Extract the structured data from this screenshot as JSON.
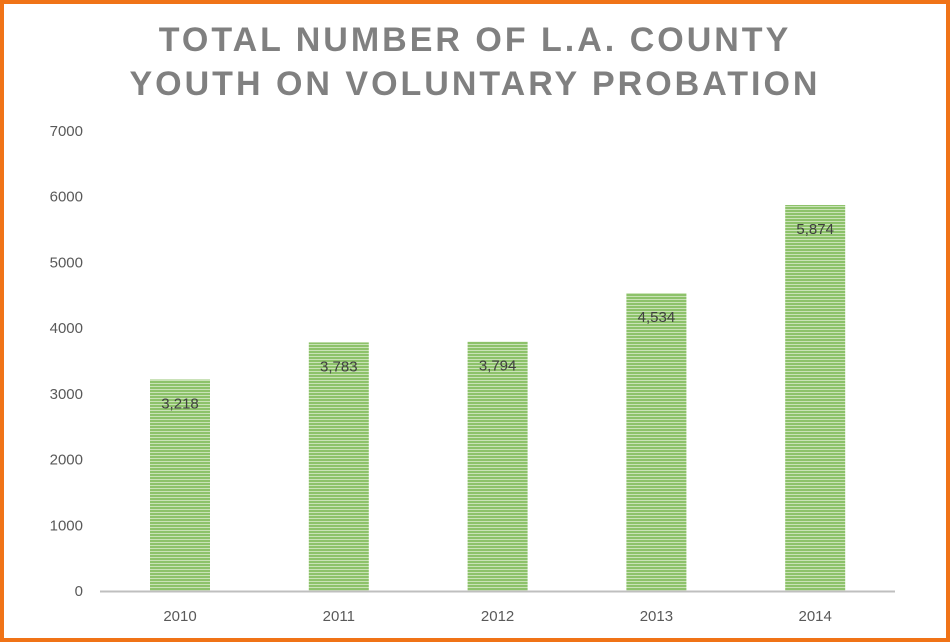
{
  "chart_data": {
    "type": "bar",
    "title_lines": [
      "TOTAL NUMBER OF L.A. COUNTY",
      "YOUTH ON VOLUNTARY PROBATION"
    ],
    "categories": [
      "2010",
      "2011",
      "2012",
      "2013",
      "2014"
    ],
    "values": [
      3218,
      3783,
      3794,
      4534,
      5874
    ],
    "data_labels": [
      "3,218",
      "3,783",
      "3,794",
      "4,534",
      "5,874"
    ],
    "xlabel": "",
    "ylabel": "",
    "ylim": [
      0,
      7000
    ],
    "yticks": [
      "0",
      "1000",
      "2000",
      "3000",
      "4000",
      "5000",
      "6000",
      "7000"
    ],
    "grid": false,
    "colors": {
      "bar": "#8dc26a",
      "bar_stripe": "#c9e2b6",
      "border": "#f07317",
      "title": "#808080"
    }
  }
}
